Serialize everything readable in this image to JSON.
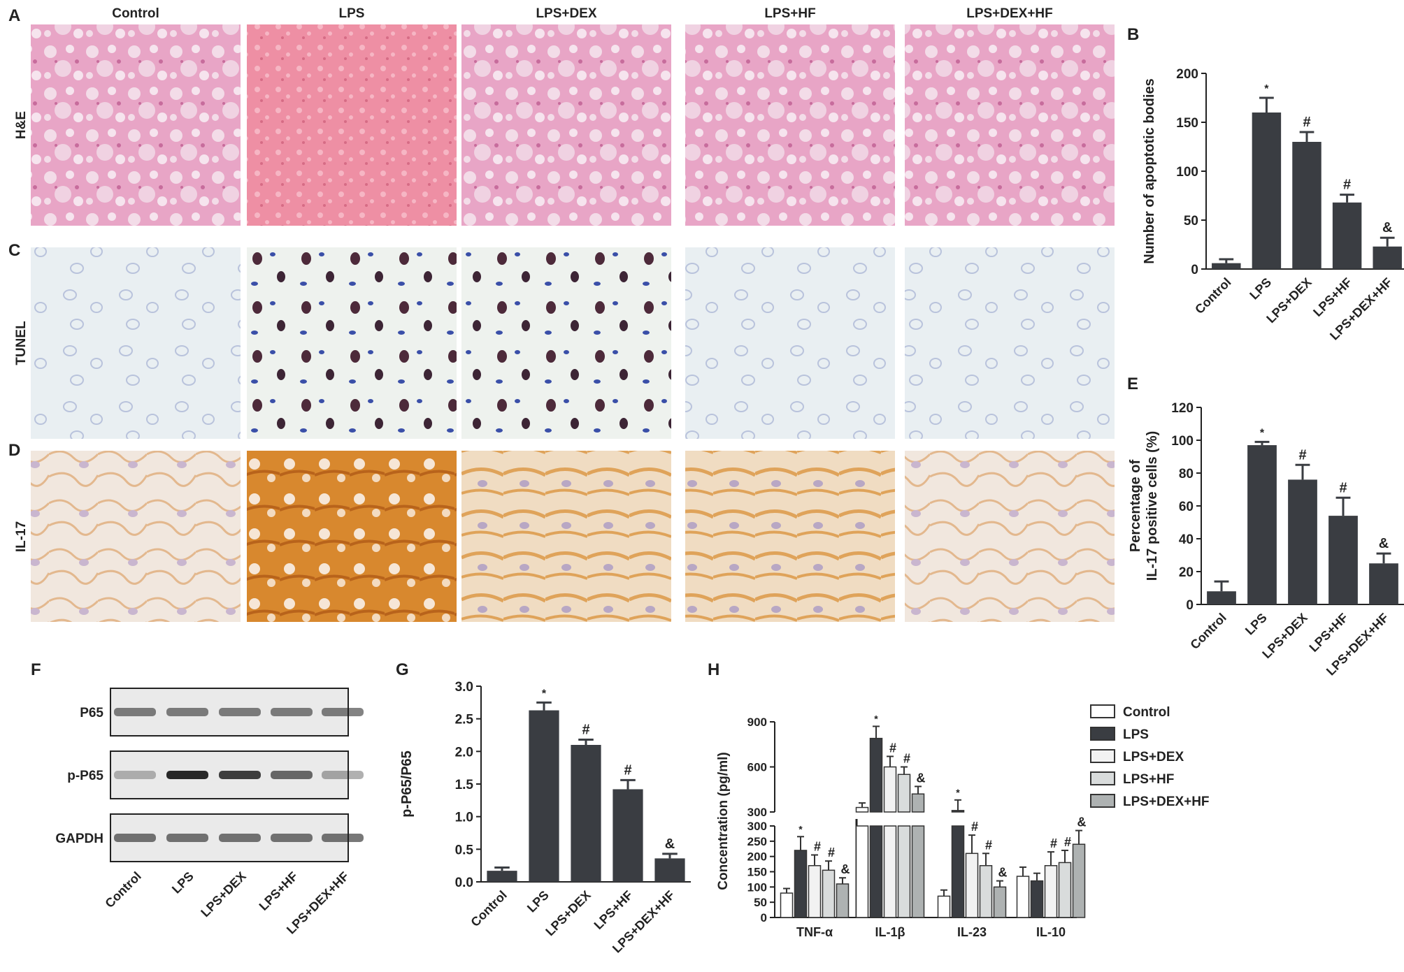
{
  "panel_letters": {
    "a": "A",
    "b": "B",
    "c": "C",
    "d": "D",
    "e": "E",
    "f": "F",
    "g": "G",
    "h": "H"
  },
  "group_names": [
    "Control",
    "LPS",
    "LPS+DEX",
    "LPS+HF",
    "LPS+DEX+HF"
  ],
  "row_labels": {
    "he": "H&E",
    "tunel": "TUNEL",
    "il17": "IL-17"
  },
  "blot": {
    "rows": [
      "P65",
      "p-P65",
      "GAPDH"
    ],
    "categories": [
      "Control",
      "LPS",
      "LPS+DEX",
      "LPS+HF",
      "LPS+DEX+HF"
    ]
  },
  "colors": {
    "bar_dark": "#3a3d42",
    "he_bg": "#e7a7c4",
    "tunel_bg": "#e8eff1",
    "il17_bg": "#efe3d6",
    "legend_fills": [
      "#ffffff",
      "#3a3d42",
      "#f2f2f2",
      "#d9dcdc",
      "#aeb2b2"
    ]
  },
  "legend": {
    "entries": [
      "Control",
      "LPS",
      "LPS+DEX",
      "LPS+HF",
      "LPS+DEX+HF"
    ]
  },
  "chart_data": [
    {
      "id": "B",
      "type": "bar",
      "categories": [
        "Control",
        "LPS",
        "LPS+DEX",
        "LPS+HF",
        "LPS+DEX+HF"
      ],
      "values": [
        6,
        160,
        130,
        68,
        23
      ],
      "errors": [
        4,
        15,
        10,
        8,
        9
      ],
      "marks": [
        "",
        "*",
        "#",
        "#",
        "&"
      ],
      "ylabel": "Number of apoptotic bodies",
      "ylim": [
        0,
        200
      ],
      "yticks": [
        0,
        50,
        100,
        150,
        200
      ]
    },
    {
      "id": "E",
      "type": "bar",
      "categories": [
        "Control",
        "LPS",
        "LPS+DEX",
        "LPS+HF",
        "LPS+DEX+HF"
      ],
      "values": [
        8,
        97,
        76,
        54,
        25
      ],
      "errors": [
        6,
        2,
        9,
        11,
        6
      ],
      "marks": [
        "",
        "*",
        "#",
        "#",
        "&"
      ],
      "ylabel_lines": [
        "Percentage of",
        "IL-17 positive cells (%)"
      ],
      "ylim": [
        0,
        120
      ],
      "yticks": [
        0,
        20,
        40,
        60,
        80,
        100,
        120
      ]
    },
    {
      "id": "G",
      "type": "bar",
      "categories": [
        "Control",
        "LPS",
        "LPS+DEX",
        "LPS+HF",
        "LPS+DEX+HF"
      ],
      "values": [
        0.17,
        2.63,
        2.1,
        1.42,
        0.36
      ],
      "errors": [
        0.05,
        0.12,
        0.08,
        0.14,
        0.07
      ],
      "marks": [
        "",
        "*",
        "#",
        "#",
        "&"
      ],
      "ylabel": "p-P65/P65",
      "ylim": [
        0,
        3.0
      ],
      "yticks": [
        "0.0",
        "0.5",
        "1.0",
        "1.5",
        "2.0",
        "2.5",
        "3.0"
      ]
    },
    {
      "id": "H",
      "type": "bar",
      "categories": [
        "TNF-α",
        "IL-1β",
        "IL-23",
        "IL-10"
      ],
      "ylabel": "Concentration (pg/ml)",
      "yticks_lower": [
        0,
        50,
        100,
        150,
        200,
        250,
        300
      ],
      "yticks_upper": [
        300,
        600,
        900
      ],
      "series": [
        {
          "name": "Control",
          "values": [
            80,
            330,
            70,
            135
          ],
          "errors": [
            15,
            30,
            20,
            30
          ],
          "marks": [
            "",
            "",
            "",
            ""
          ]
        },
        {
          "name": "LPS",
          "values": [
            220,
            790,
            310,
            120
          ],
          "errors": [
            45,
            80,
            70,
            25
          ],
          "marks": [
            "*",
            "*",
            "*",
            ""
          ]
        },
        {
          "name": "LPS+DEX",
          "values": [
            170,
            600,
            210,
            170
          ],
          "errors": [
            35,
            70,
            60,
            45
          ],
          "marks": [
            "#",
            "#",
            "#",
            "#"
          ]
        },
        {
          "name": "LPS+HF",
          "values": [
            155,
            550,
            170,
            180
          ],
          "errors": [
            30,
            50,
            40,
            40
          ],
          "marks": [
            "#",
            "#",
            "#",
            "#"
          ]
        },
        {
          "name": "LPS+DEX+HF",
          "values": [
            110,
            420,
            100,
            240
          ],
          "errors": [
            20,
            50,
            20,
            45
          ],
          "marks": [
            "&",
            "&",
            "&",
            "&"
          ]
        }
      ]
    }
  ]
}
